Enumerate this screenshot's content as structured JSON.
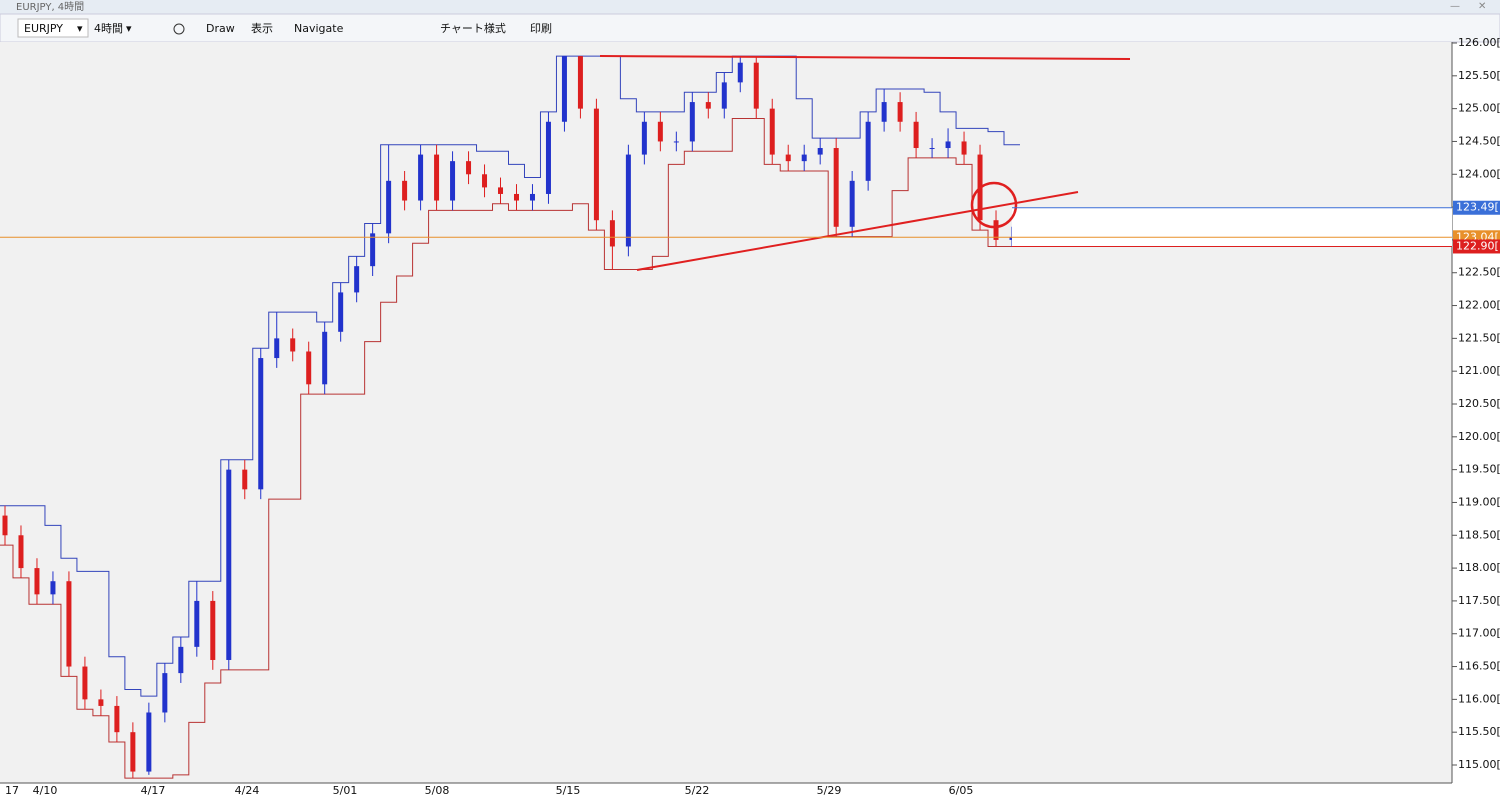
{
  "window": {
    "title": "EURJPY, 4時間"
  },
  "toolbar": {
    "symbol": "EURJPY",
    "timeframe": "4時間",
    "draw": "Draw",
    "view": "表示",
    "navigate": "Navigate",
    "chart_style": "チャート様式",
    "print": "印刷"
  },
  "chart_data": {
    "type": "candlestick",
    "categories": [
      "17",
      "4/10",
      "4/17",
      "4/24",
      "5/01",
      "5/08",
      "5/15",
      "5/22",
      "5/29",
      "6/05"
    ],
    "open": [
      118.8,
      118.5,
      118.0,
      117.6,
      117.8,
      116.5,
      116.0,
      115.9,
      115.5,
      114.9,
      115.8,
      116.4,
      116.8,
      117.5,
      116.6,
      119.5,
      119.2,
      121.2,
      121.5,
      121.3,
      120.8,
      121.6,
      122.2,
      122.6,
      123.1,
      123.9,
      123.6,
      124.3,
      123.6,
      124.2,
      124.0,
      123.8,
      123.7,
      123.6,
      123.7,
      124.8,
      125.8,
      125.0,
      123.3,
      122.9,
      124.3,
      124.8,
      124.5,
      124.5,
      125.1,
      125.0,
      125.4,
      125.7,
      125.0,
      124.3,
      124.2,
      124.3,
      124.4,
      123.2,
      123.9,
      124.8,
      125.1,
      124.8,
      124.4,
      124.4,
      124.5,
      124.3,
      123.3,
      123.0
    ],
    "high": [
      118.95,
      118.65,
      118.15,
      117.95,
      117.95,
      116.65,
      116.15,
      116.05,
      115.65,
      115.95,
      116.55,
      116.95,
      117.8,
      117.65,
      119.65,
      119.65,
      121.35,
      121.9,
      121.65,
      121.45,
      121.75,
      122.35,
      122.75,
      123.25,
      124.45,
      124.05,
      124.45,
      124.45,
      124.35,
      124.35,
      124.15,
      123.95,
      123.85,
      123.85,
      124.95,
      125.8,
      125.8,
      125.15,
      123.45,
      124.45,
      124.95,
      124.95,
      124.65,
      125.25,
      125.25,
      125.55,
      125.8,
      125.8,
      125.15,
      124.45,
      124.45,
      124.55,
      124.55,
      124.05,
      124.95,
      125.3,
      125.25,
      124.95,
      124.55,
      124.7,
      124.65,
      124.45,
      123.45,
      123.2
    ],
    "low": [
      118.35,
      117.85,
      117.45,
      117.45,
      116.35,
      115.85,
      115.75,
      115.35,
      114.8,
      114.85,
      115.65,
      116.25,
      116.65,
      116.45,
      116.45,
      119.05,
      119.05,
      121.05,
      121.15,
      120.65,
      120.65,
      121.45,
      122.05,
      122.45,
      122.95,
      123.45,
      123.45,
      123.45,
      123.45,
      123.85,
      123.65,
      123.55,
      123.45,
      123.45,
      123.55,
      124.65,
      124.85,
      123.15,
      122.55,
      122.75,
      124.15,
      124.35,
      124.35,
      124.35,
      124.85,
      124.85,
      125.25,
      124.85,
      124.15,
      124.05,
      124.05,
      124.15,
      123.05,
      123.05,
      123.75,
      124.65,
      124.65,
      124.25,
      124.25,
      124.25,
      124.15,
      123.15,
      122.9,
      122.9
    ],
    "close": [
      118.5,
      118.0,
      117.6,
      117.8,
      116.5,
      116.0,
      115.9,
      115.5,
      114.9,
      115.8,
      116.4,
      116.8,
      117.5,
      116.6,
      119.5,
      119.2,
      121.2,
      121.5,
      121.3,
      120.8,
      121.6,
      122.2,
      122.6,
      123.1,
      123.9,
      123.6,
      124.3,
      123.6,
      124.2,
      124.0,
      123.8,
      123.7,
      123.6,
      123.7,
      124.8,
      125.8,
      125.0,
      123.3,
      122.9,
      124.3,
      124.8,
      124.5,
      124.5,
      125.1,
      125.0,
      125.4,
      125.7,
      125.0,
      124.3,
      124.2,
      124.3,
      124.4,
      123.2,
      123.9,
      124.8,
      125.1,
      124.8,
      124.4,
      124.4,
      124.5,
      124.3,
      123.3,
      123.0,
      123.04
    ],
    "up_color": "#2233cc",
    "down_color": "#dd1f1f",
    "ylim": [
      114.7,
      126.05
    ],
    "yticks": [
      {
        "value": 126,
        "label": "126.00[0"
      },
      {
        "value": 125.5,
        "label": "125.50[0"
      },
      {
        "value": 125,
        "label": "125.00[0"
      },
      {
        "value": 124.5,
        "label": "124.50[0"
      },
      {
        "value": 124,
        "label": "124.00[0"
      },
      {
        "value": 123.5,
        "label": "123.50[0"
      },
      {
        "value": 123,
        "label": "123.00[0"
      },
      {
        "value": 122.5,
        "label": "122.50[0"
      },
      {
        "value": 122,
        "label": "122.00[0"
      },
      {
        "value": 121.5,
        "label": "121.50[0"
      },
      {
        "value": 121,
        "label": "121.00[0"
      },
      {
        "value": 120.5,
        "label": "120.50[0"
      },
      {
        "value": 120,
        "label": "120.00[0"
      },
      {
        "value": 119.5,
        "label": "119.50[0"
      },
      {
        "value": 119,
        "label": "119.00[0"
      },
      {
        "value": 118.5,
        "label": "118.50[0"
      },
      {
        "value": 118,
        "label": "118.00[0"
      },
      {
        "value": 117.5,
        "label": "117.50[0"
      },
      {
        "value": 117,
        "label": "117.00[0"
      },
      {
        "value": 116.5,
        "label": "116.50[0"
      },
      {
        "value": 116,
        "label": "116.00[0"
      },
      {
        "value": 115.5,
        "label": "115.50[0"
      },
      {
        "value": 115,
        "label": "115.00[0"
      }
    ],
    "price_markers": [
      {
        "value": 123.49,
        "label": "123.49[",
        "color": "#3a6fd8"
      },
      {
        "value": 123.04,
        "label": "123.04[",
        "color": "#e8902a"
      },
      {
        "value": 122.9,
        "label": "122.90[",
        "color": "#dd1f1f"
      }
    ]
  }
}
